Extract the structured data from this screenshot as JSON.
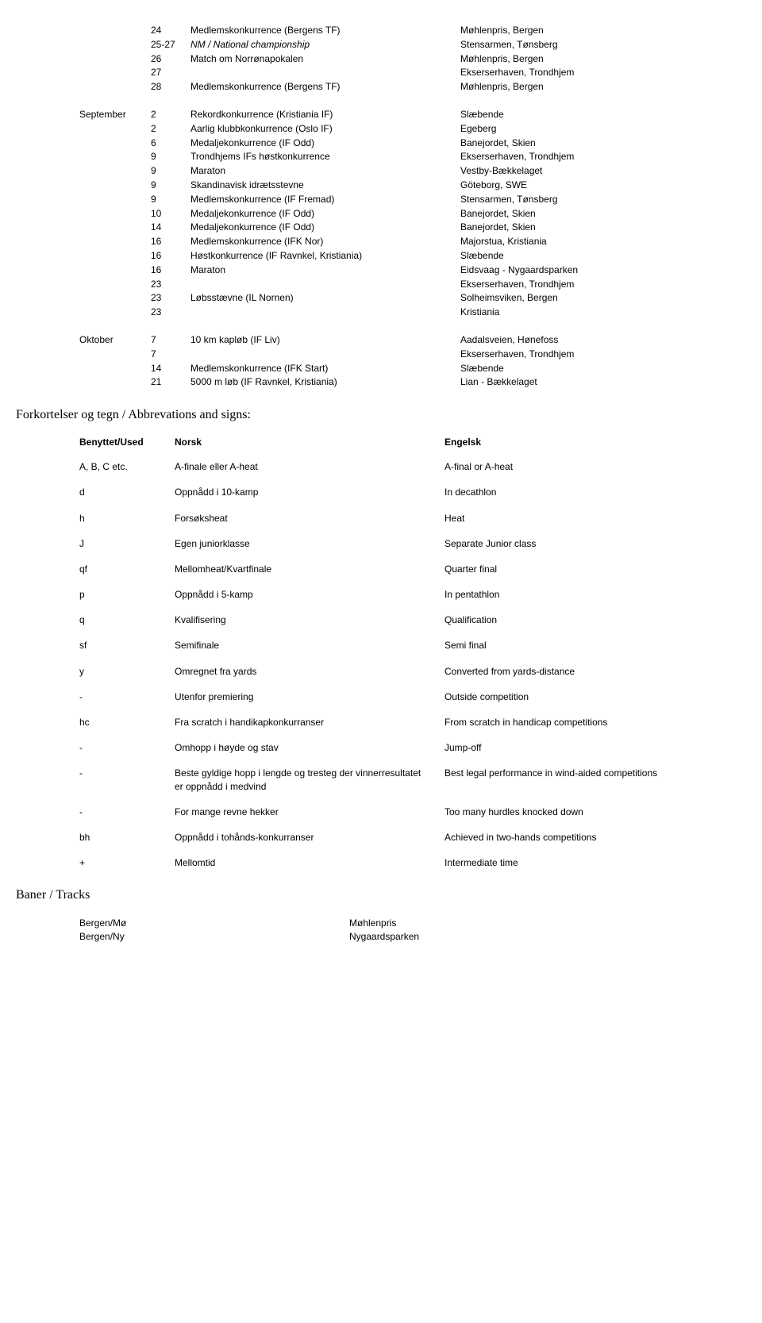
{
  "schedule": [
    {
      "month": "",
      "rows": [
        {
          "day": "24",
          "event": "Medlemskonkurrence (Bergens TF)",
          "loc": "Møhlenpris, Bergen",
          "italic": false
        },
        {
          "day": "25-27",
          "event": "NM / National championship",
          "loc": "Stensarmen, Tønsberg",
          "italic": true
        },
        {
          "day": "26",
          "event": "Match om Norrønapokalen",
          "loc": "Møhlenpris, Bergen",
          "italic": false
        },
        {
          "day": "27",
          "event": "",
          "loc": "Ekserserhaven, Trondhjem",
          "italic": false
        },
        {
          "day": "28",
          "event": "Medlemskonkurrence (Bergens TF)",
          "loc": "Møhlenpris, Bergen",
          "italic": false
        }
      ]
    },
    {
      "month": "September",
      "rows": [
        {
          "day": "2",
          "event": "Rekordkonkurrence (Kristiania IF)",
          "loc": "Slæbende",
          "italic": false
        },
        {
          "day": "2",
          "event": "Aarlig klubbkonkurrence (Oslo IF)",
          "loc": "Egeberg",
          "italic": false
        },
        {
          "day": "6",
          "event": "Medaljekonkurrence (IF Odd)",
          "loc": "Banejordet, Skien",
          "italic": false
        },
        {
          "day": "9",
          "event": "Trondhjems IFs høstkonkurrence",
          "loc": "Ekserserhaven, Trondhjem",
          "italic": false
        },
        {
          "day": "9",
          "event": "Maraton",
          "loc": "Vestby-Bækkelaget",
          "italic": false
        },
        {
          "day": "9",
          "event": "Skandinavisk idrætsstevne",
          "loc": "Göteborg, SWE",
          "italic": false
        },
        {
          "day": "9",
          "event": "Medlemskonkurrence (IF Fremad)",
          "loc": "Stensarmen, Tønsberg",
          "italic": false
        },
        {
          "day": "10",
          "event": "Medaljekonkurrence (IF Odd)",
          "loc": "Banejordet, Skien",
          "italic": false
        },
        {
          "day": "14",
          "event": "Medaljekonkurrence (IF Odd)",
          "loc": "Banejordet, Skien",
          "italic": false
        },
        {
          "day": "16",
          "event": "Medlemskonkurrence (IFK Nor)",
          "loc": "Majorstua, Kristiania",
          "italic": false
        },
        {
          "day": "16",
          "event": "Høstkonkurrence (IF Ravnkel, Kristiania)",
          "loc": "Slæbende",
          "italic": false
        },
        {
          "day": "16",
          "event": "Maraton",
          "loc": "Eidsvaag - Nygaardsparken",
          "italic": false
        },
        {
          "day": "23",
          "event": "",
          "loc": "Ekserserhaven, Trondhjem",
          "italic": false
        },
        {
          "day": "23",
          "event": "Løbsstævne (IL Nornen)",
          "loc": "Solheimsviken, Bergen",
          "italic": false
        },
        {
          "day": "23",
          "event": "",
          "loc": "Kristiania",
          "italic": false
        }
      ]
    },
    {
      "month": "Oktober",
      "rows": [
        {
          "day": "7",
          "event": "10 km kapløb (IF Liv)",
          "loc": "Aadalsveien, Hønefoss",
          "italic": false
        },
        {
          "day": "7",
          "event": "",
          "loc": "Ekserserhaven, Trondhjem",
          "italic": false
        },
        {
          "day": "14",
          "event": "Medlemskonkurrence (IFK Start)",
          "loc": "Slæbende",
          "italic": false
        },
        {
          "day": "21",
          "event": "5000 m løb (IF Ravnkel, Kristiania)",
          "loc": "Lian - Bækkelaget",
          "italic": false
        }
      ]
    }
  ],
  "abbr_title": "Forkortelser og tegn / Abbrevations and signs:",
  "abbr_header": {
    "c1": "Benyttet/Used",
    "c2": "Norsk",
    "c3": "Engelsk"
  },
  "abbr": [
    {
      "c1": "A, B, C etc.",
      "c2": "A-finale eller A-heat",
      "c3": "A-final or A-heat"
    },
    {
      "c1": "d",
      "c2": "Oppnådd i 10-kamp",
      "c3": "In decathlon"
    },
    {
      "c1": "h",
      "c2": "Forsøksheat",
      "c3": "Heat"
    },
    {
      "c1": "J",
      "c2": "Egen juniorklasse",
      "c3": "Separate Junior class"
    },
    {
      "c1": "qf",
      "c2": "Mellomheat/Kvartfinale",
      "c3": "Quarter final"
    },
    {
      "c1": "p",
      "c2": "Oppnådd i 5-kamp",
      "c3": "In pentathlon"
    },
    {
      "c1": "q",
      "c2": "Kvalifisering",
      "c3": "Qualification"
    },
    {
      "c1": "sf",
      "c2": "Semifinale",
      "c3": "Semi final"
    },
    {
      "c1": "y",
      "c2": "Omregnet fra yards",
      "c3": "Converted from yards-distance"
    },
    {
      "c1": "-",
      "c2": "Utenfor premiering",
      "c3": "Outside competition"
    },
    {
      "c1": "hc",
      "c2": "Fra scratch i handikapkonkurranser",
      "c3": "From scratch in handicap competitions"
    },
    {
      "c1": "-",
      "c2": "Omhopp i høyde og stav",
      "c3": "Jump-off"
    },
    {
      "c1": "-",
      "c2": "Beste gyldige hopp i lengde og tresteg der vinnerresultatet er oppnådd i medvind",
      "c3": "Best legal performance in wind-aided competitions"
    },
    {
      "c1": "-",
      "c2": "For mange revne hekker",
      "c3": "Too many hurdles knocked down"
    },
    {
      "c1": "bh",
      "c2": "Oppnådd i tohånds-konkurranser",
      "c3": "Achieved in two-hands competitions"
    },
    {
      "c1": "+",
      "c2": "Mellomtid",
      "c3": "Intermediate time"
    }
  ],
  "tracks_title": "Baner / Tracks",
  "tracks": [
    {
      "c1": "Bergen/Mø",
      "c2": "Møhlenpris"
    },
    {
      "c1": "Bergen/Ny",
      "c2": "Nygaardsparken"
    }
  ]
}
